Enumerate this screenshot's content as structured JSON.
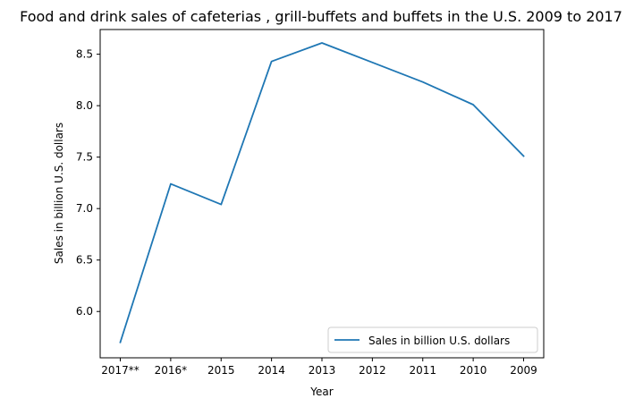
{
  "chart_data": {
    "type": "line",
    "title": "Food and drink sales of cafeterias , grill-buffets and buffets in the U.S. 2009 to 2017",
    "xlabel": "Year",
    "ylabel": "Sales in billion U.S. dollars",
    "categories": [
      "2017**",
      "2016*",
      "2015",
      "2014",
      "2013",
      "2012",
      "2011",
      "2010",
      "2009"
    ],
    "series": [
      {
        "name": "Sales in billion U.S. dollars",
        "values": [
          5.7,
          7.24,
          7.04,
          8.43,
          8.61,
          8.42,
          8.23,
          8.01,
          7.51
        ],
        "color": "#1f77b4"
      }
    ],
    "ylim": [
      5.55,
      8.74
    ],
    "yticks": [
      6.0,
      6.5,
      7.0,
      7.5,
      8.0,
      8.5
    ],
    "ytick_labels": [
      "6.0",
      "6.5",
      "7.0",
      "7.5",
      "8.0",
      "8.5"
    ],
    "grid": false,
    "legend_position": "lower-right"
  }
}
